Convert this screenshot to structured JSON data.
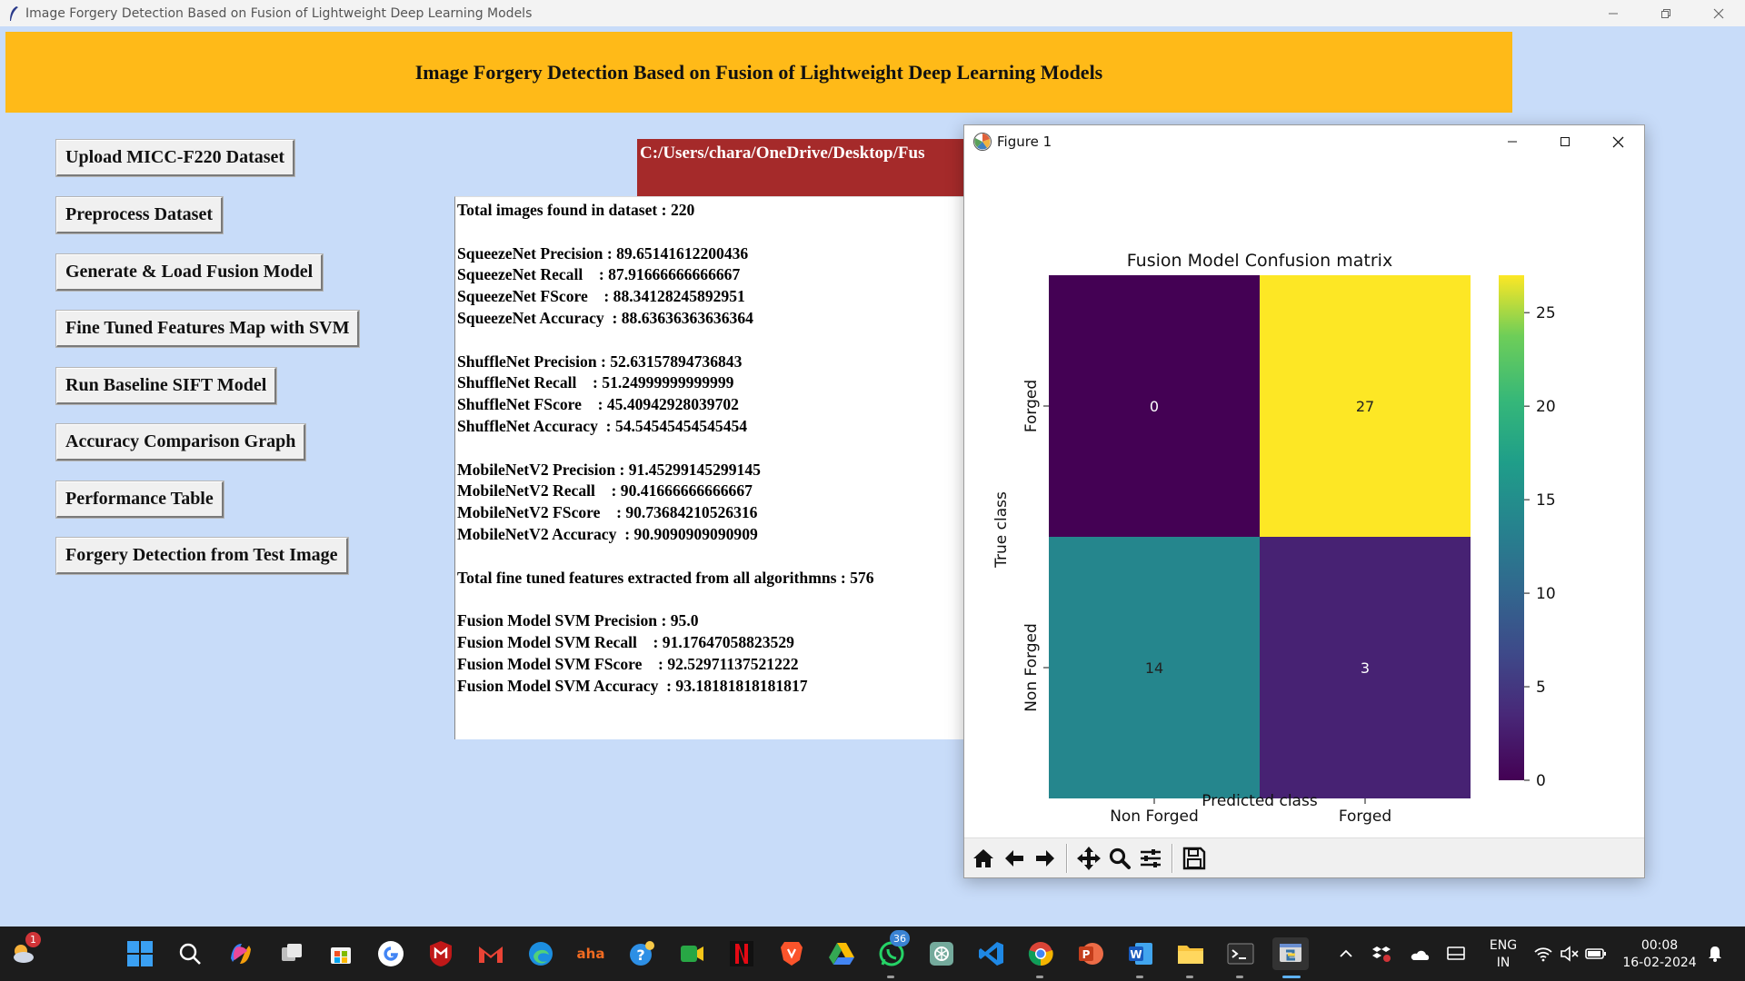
{
  "window": {
    "title": "Image Forgery Detection Based on Fusion of Lightweight Deep Learning Models"
  },
  "banner": {
    "text": "Image Forgery Detection Based on Fusion of Lightweight Deep Learning Models",
    "color": "#ffba18"
  },
  "buttons": [
    "Upload MICC-F220 Dataset",
    "Preprocess Dataset",
    "Generate & Load Fusion Model",
    "Fine Tuned Features Map with SVM",
    "Run Baseline SIFT Model",
    "Accuracy Comparison Graph",
    "Performance Table",
    "Forgery Detection from Test Image"
  ],
  "path_label": {
    "text": "C:/Users/chara/OneDrive/Desktop/Fus",
    "color": "#a52a2a"
  },
  "results_lines": [
    "Total images found in dataset : 220",
    "",
    "SqueezeNet Precision : 89.65141612200436",
    "SqueezeNet Recall    : 87.91666666666667",
    "SqueezeNet FScore    : 88.34128245892951",
    "SqueezeNet Accuracy  : 88.63636363636364",
    "",
    "ShuffleNet Precision : 52.63157894736843",
    "ShuffleNet Recall    : 51.24999999999999",
    "ShuffleNet FScore    : 45.40942928039702",
    "ShuffleNet Accuracy  : 54.54545454545454",
    "",
    "MobileNetV2 Precision : 91.45299145299145",
    "MobileNetV2 Recall    : 90.41666666666667",
    "MobileNetV2 FScore    : 90.73684210526316",
    "MobileNetV2 Accuracy  : 90.9090909090909",
    "",
    "Total fine tuned features extracted from all algorithmns : 576",
    "",
    "Fusion Model SVM Precision : 95.0",
    "Fusion Model SVM Recall    : 91.17647058823529",
    "Fusion Model SVM FScore    : 92.52971137521222",
    "Fusion Model SVM Accuracy  : 93.18181818181817"
  ],
  "figure": {
    "title": "Figure 1",
    "toolbar": [
      "home-icon",
      "back-icon",
      "forward-icon",
      "pan-icon",
      "zoom-icon",
      "configure-icon",
      "save-icon"
    ]
  },
  "chart_data": {
    "type": "heatmap",
    "title": "Fusion Model Confusion matrix",
    "xlabel": "Predicted class",
    "ylabel": "True class",
    "x_categories": [
      "Non Forged",
      "Forged"
    ],
    "y_categories": [
      "Forged",
      "Non Forged"
    ],
    "values": [
      [
        0,
        27
      ],
      [
        14,
        3
      ]
    ],
    "colorscale": "viridis",
    "color_range": [
      0,
      27
    ],
    "colorbar_ticks": [
      0,
      5,
      10,
      15,
      20,
      25
    ]
  },
  "taskbar": {
    "weather_badge": "1",
    "whatsapp_badge": "36",
    "language": "ENG",
    "region": "IN",
    "time": "00:08",
    "date": "16-02-2024"
  }
}
